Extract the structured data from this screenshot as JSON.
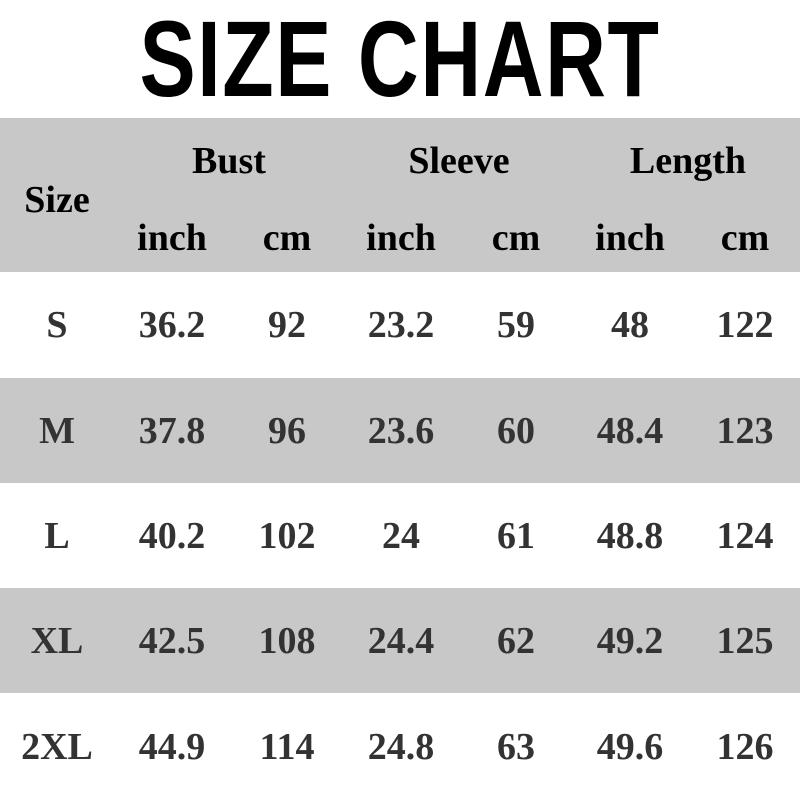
{
  "title": "SIZE CHART",
  "header": {
    "size": "Size",
    "groups": [
      "Bust",
      "Sleeve",
      "Length"
    ],
    "units": [
      "inch",
      "cm",
      "inch",
      "cm",
      "inch",
      "cm"
    ]
  },
  "colors": {
    "band": "#c8c8c8",
    "text": "#333333"
  },
  "chart_data": {
    "type": "table",
    "title": "SIZE CHART",
    "columns": [
      "Size",
      "Bust inch",
      "Bust cm",
      "Sleeve inch",
      "Sleeve cm",
      "Length inch",
      "Length cm"
    ],
    "rows": [
      [
        "S",
        "36.2",
        "92",
        "23.2",
        "59",
        "48",
        "122"
      ],
      [
        "M",
        "37.8",
        "96",
        "23.6",
        "60",
        "48.4",
        "123"
      ],
      [
        "L",
        "40.2",
        "102",
        "24",
        "61",
        "48.8",
        "124"
      ],
      [
        "XL",
        "42.5",
        "108",
        "24.4",
        "62",
        "49.2",
        "125"
      ],
      [
        "2XL",
        "44.9",
        "114",
        "24.8",
        "63",
        "49.6",
        "126"
      ]
    ]
  }
}
